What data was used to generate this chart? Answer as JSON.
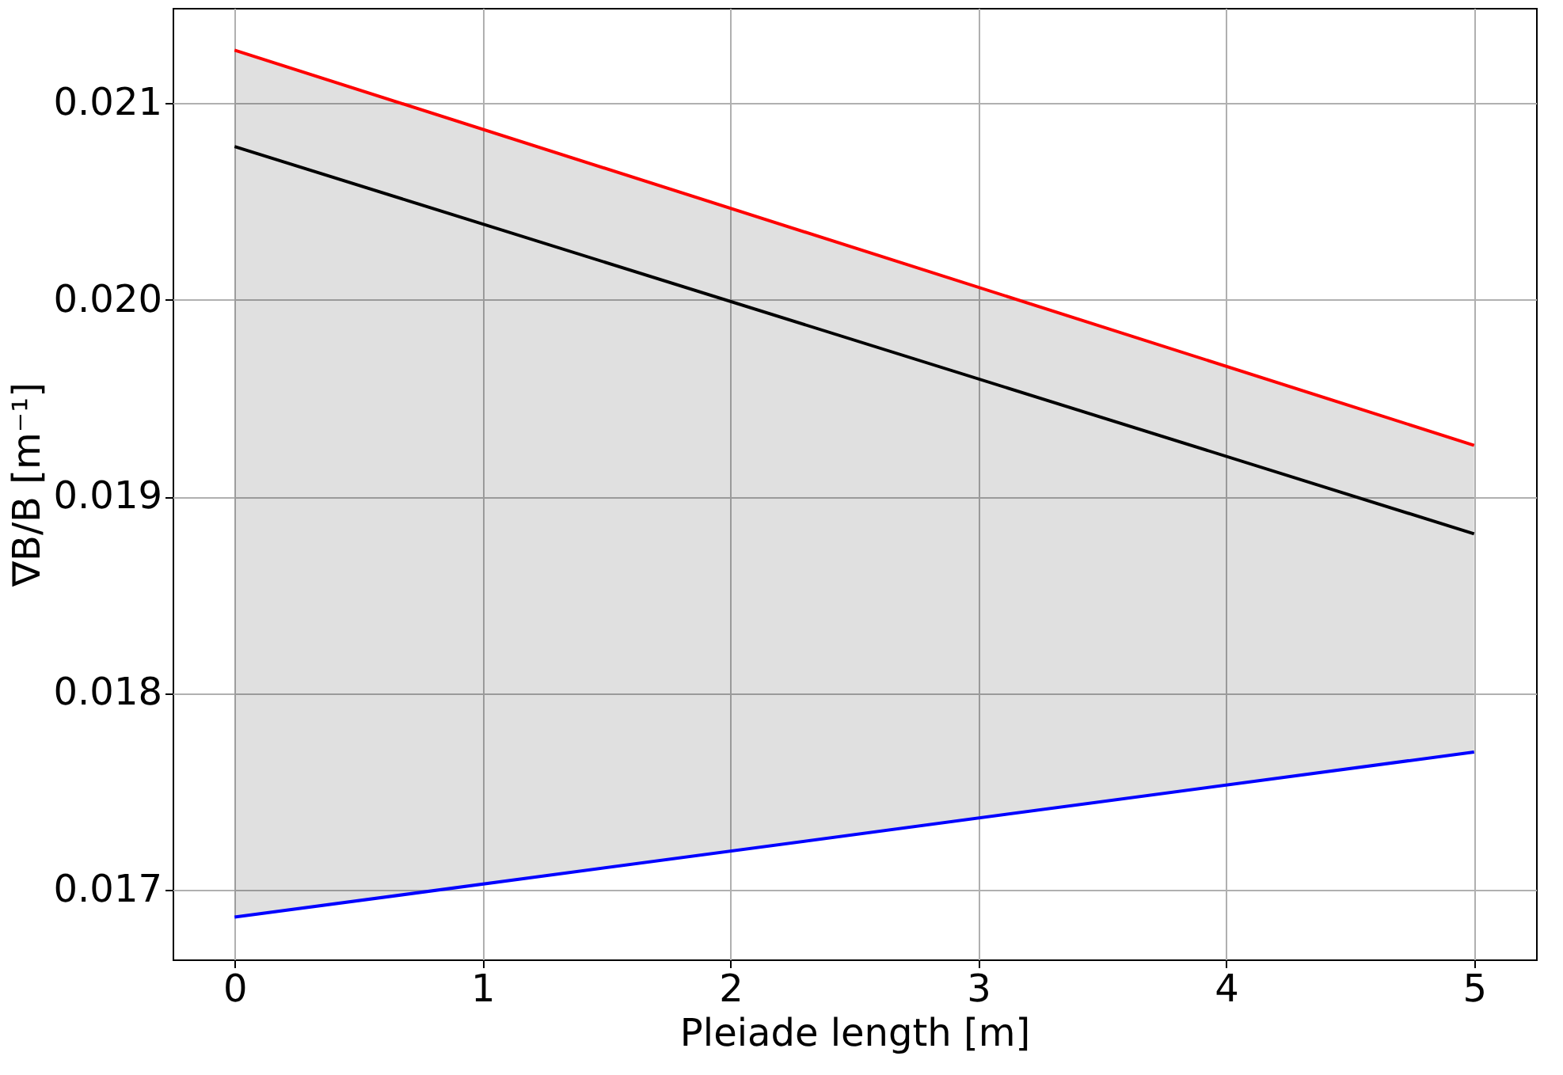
{
  "chart_data": {
    "type": "line",
    "xlabel": "Pleiade length [m]",
    "ylabel": "∇B/B [m⁻¹]",
    "x": [
      0,
      5
    ],
    "series": [
      {
        "color": "#ff0000",
        "values": [
          0.02127,
          0.01926
        ]
      },
      {
        "color": "#000000",
        "values": [
          0.02078,
          0.01881
        ],
        "lower": [
          0.01686,
          0.0177
        ],
        "upper": [
          0.02127,
          0.01926
        ]
      },
      {
        "color": "#0000ff",
        "values": [
          0.01686,
          0.0177
        ]
      }
    ],
    "xlim": [
      -0.25,
      5.25
    ],
    "xticks": [
      0,
      1,
      2,
      3,
      4,
      5
    ],
    "ylim": [
      0.016645,
      0.021485
    ],
    "yticks": [
      0.017,
      0.018,
      0.019,
      {
        "value": 0.02,
        "label": "0.020"
      },
      0.021
    ],
    "grid": true,
    "marker": "none",
    "line_style": "solid"
  }
}
